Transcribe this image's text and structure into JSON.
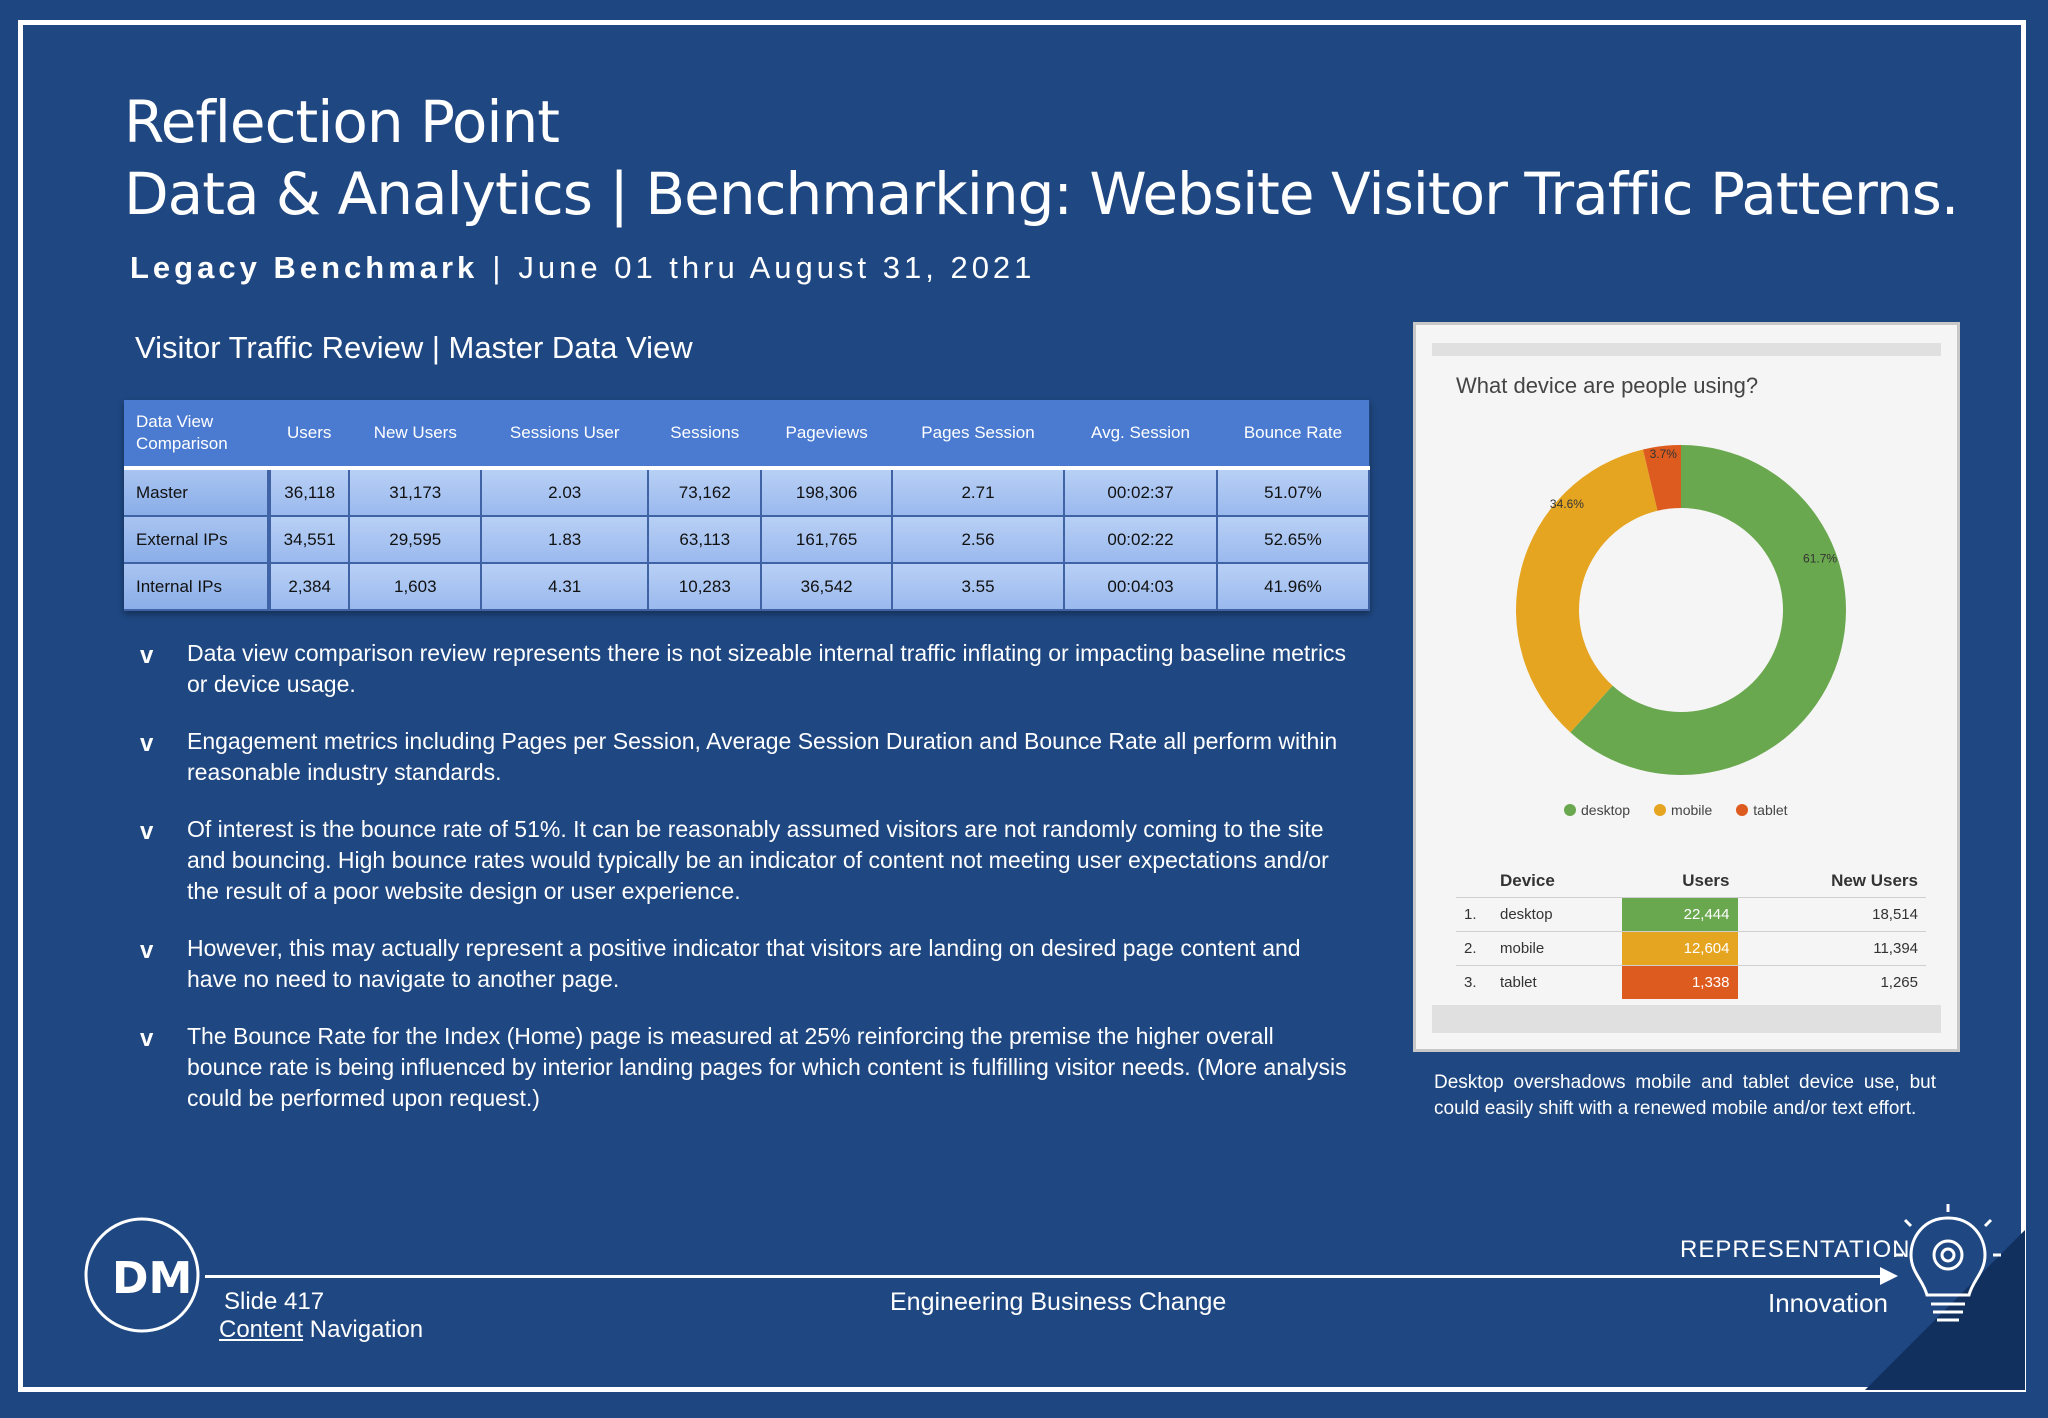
{
  "header": {
    "title_line1": "Reflection Point",
    "title_line2": "Data & Analytics | Benchmarking: Website Visitor Traffic Patterns.",
    "subtitle_bold": "Legacy Benchmark",
    "subtitle_sep": "|",
    "subtitle_dates": "June 01 thru August 31, 2021"
  },
  "section_title": "Visitor Traffic Review | Master Data View",
  "table": {
    "headers": [
      "Data View Comparison",
      "Users",
      "New Users",
      "Sessions User",
      "Sessions",
      "Pageviews",
      "Pages Session",
      "Avg. Session",
      "Bounce Rate"
    ],
    "rows": [
      [
        "Master",
        "36,118",
        "31,173",
        "2.03",
        "73,162",
        "198,306",
        "2.71",
        "00:02:37",
        "51.07%"
      ],
      [
        "External IPs",
        "34,551",
        "29,595",
        "1.83",
        "63,113",
        "161,765",
        "2.56",
        "00:02:22",
        "52.65%"
      ],
      [
        "Internal IPs",
        "2,384",
        "1,603",
        "4.31",
        "10,283",
        "36,542",
        "3.55",
        "00:04:03",
        "41.96%"
      ]
    ]
  },
  "bullets": {
    "marker": "v",
    "items": [
      "Data view comparison review represents there is not sizeable internal traffic inflating or impacting baseline metrics or device usage.",
      "Engagement metrics including Pages per Session, Average Session Duration and Bounce Rate all perform within reasonable industry standards.",
      "Of interest is the bounce rate of 51%. It can be reasonably assumed visitors are not randomly coming to the site and bouncing. High bounce rates would typically be an indicator of content not meeting user expectations and/or the result of a poor website design or user experience.",
      "However, this may actually represent a positive indicator that visitors are landing on desired page content and have no need to navigate to another page.",
      "The Bounce Rate for the Index (Home) page is measured at 25% reinforcing the premise the higher overall bounce rate is being influenced by interior landing pages for which content is fulfilling visitor needs. (More analysis could be performed upon request.)"
    ]
  },
  "device_panel": {
    "title": "What device are people using?",
    "legend": [
      "desktop",
      "mobile",
      "tablet"
    ],
    "table_headers": [
      "Device",
      "Users",
      "New Users"
    ],
    "rows": [
      [
        "1.",
        "desktop",
        "22,444",
        "18,514"
      ],
      [
        "2.",
        "mobile",
        "12,604",
        "11,394"
      ],
      [
        "3.",
        "tablet",
        "1,338",
        "1,265"
      ]
    ]
  },
  "chart_data": {
    "type": "pie",
    "title": "What device are people using?",
    "categories": [
      "desktop",
      "mobile",
      "tablet"
    ],
    "values": [
      61.7,
      34.6,
      3.7
    ],
    "labels": [
      "61.7%",
      "34.6%",
      "3.7%"
    ],
    "colors": [
      "#6aa84f",
      "#e6a521",
      "#dd5b1e"
    ],
    "legend": "bottom"
  },
  "caption": "Desktop overshadows mobile and tablet device use, but could easily shift with a renewed mobile and/or text effort.",
  "footer": {
    "logo_text": "DM",
    "slide": "Slide 417",
    "nav_link": "Content",
    "nav_rest": " Navigation",
    "center": "Engineering Business Change",
    "representation": "REPRESENTATION",
    "innovation": "Innovation"
  }
}
